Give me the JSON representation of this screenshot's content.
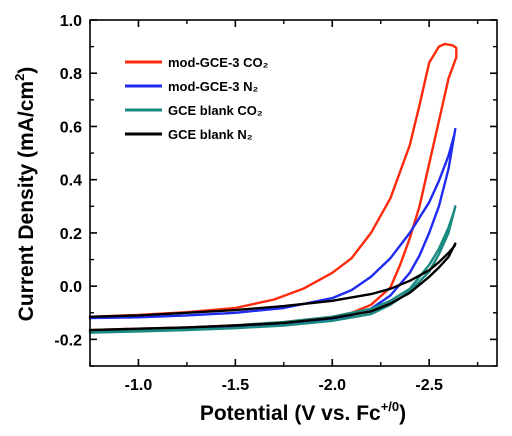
{
  "chart_data": {
    "type": "line",
    "xlabel": "Potential (V vs. Fc",
    "xlabel_sup": "+/0",
    "xlabel_end": ")",
    "ylabel": "Current Density (mA/cm",
    "ylabel_sup": "2",
    "ylabel_end": ")",
    "xlim": [
      -0.75,
      -2.85
    ],
    "ylim": [
      -0.3,
      1.0
    ],
    "x_ticks": [
      -1.0,
      -1.5,
      -2.0,
      -2.5
    ],
    "x_tick_labels": [
      "-1.0",
      "-1.5",
      "-2.0",
      "-2.5"
    ],
    "y_ticks": [
      -0.2,
      0.0,
      0.2,
      0.4,
      0.6,
      0.8,
      1.0
    ],
    "y_tick_labels": [
      "-0.2",
      "0.0",
      "0.2",
      "0.4",
      "0.6",
      "0.8",
      "1.0"
    ],
    "legend_position": "top-left",
    "series": [
      {
        "name": "mod-GCE-3 CO₂",
        "color": "#ff2a0c",
        "points": [
          [
            -0.75,
            -0.115
          ],
          [
            -1.0,
            -0.108
          ],
          [
            -1.25,
            -0.098
          ],
          [
            -1.5,
            -0.082
          ],
          [
            -1.7,
            -0.05
          ],
          [
            -1.85,
            -0.01
          ],
          [
            -2.0,
            0.05
          ],
          [
            -2.1,
            0.105
          ],
          [
            -2.2,
            0.2
          ],
          [
            -2.3,
            0.33
          ],
          [
            -2.4,
            0.53
          ],
          [
            -2.45,
            0.68
          ],
          [
            -2.5,
            0.84
          ],
          [
            -2.55,
            0.9
          ],
          [
            -2.58,
            0.91
          ],
          [
            -2.62,
            0.905
          ],
          [
            -2.64,
            0.895
          ],
          [
            -2.64,
            0.86
          ],
          [
            -2.6,
            0.78
          ],
          [
            -2.55,
            0.62
          ],
          [
            -2.5,
            0.46
          ],
          [
            -2.45,
            0.3
          ],
          [
            -2.4,
            0.18
          ],
          [
            -2.35,
            0.08
          ],
          [
            -2.3,
            -0.005
          ],
          [
            -2.2,
            -0.07
          ],
          [
            -2.1,
            -0.1
          ],
          [
            -2.0,
            -0.115
          ],
          [
            -1.75,
            -0.135
          ],
          [
            -1.5,
            -0.147
          ],
          [
            -1.25,
            -0.155
          ],
          [
            -1.0,
            -0.16
          ],
          [
            -0.75,
            -0.165
          ]
        ]
      },
      {
        "name": "mod-GCE-3 N₂",
        "color": "#1f2cf0",
        "points": [
          [
            -0.75,
            -0.12
          ],
          [
            -1.0,
            -0.117
          ],
          [
            -1.25,
            -0.11
          ],
          [
            -1.5,
            -0.1
          ],
          [
            -1.75,
            -0.082
          ],
          [
            -2.0,
            -0.045
          ],
          [
            -2.1,
            -0.015
          ],
          [
            -2.2,
            0.035
          ],
          [
            -2.3,
            0.105
          ],
          [
            -2.4,
            0.2
          ],
          [
            -2.5,
            0.315
          ],
          [
            -2.55,
            0.395
          ],
          [
            -2.6,
            0.49
          ],
          [
            -2.63,
            0.57
          ],
          [
            -2.635,
            0.59
          ],
          [
            -2.6,
            0.44
          ],
          [
            -2.55,
            0.3
          ],
          [
            -2.5,
            0.2
          ],
          [
            -2.45,
            0.115
          ],
          [
            -2.4,
            0.05
          ],
          [
            -2.3,
            -0.035
          ],
          [
            -2.2,
            -0.085
          ],
          [
            -2.1,
            -0.11
          ],
          [
            -2.0,
            -0.125
          ],
          [
            -1.75,
            -0.14
          ],
          [
            -1.5,
            -0.152
          ],
          [
            -1.25,
            -0.16
          ],
          [
            -1.0,
            -0.165
          ],
          [
            -0.75,
            -0.17
          ]
        ]
      },
      {
        "name": "GCE blank CO₂",
        "color": "#1b8a80",
        "points": [
          [
            -0.75,
            -0.17
          ],
          [
            -1.0,
            -0.165
          ],
          [
            -1.25,
            -0.157
          ],
          [
            -1.5,
            -0.147
          ],
          [
            -1.75,
            -0.135
          ],
          [
            -2.0,
            -0.115
          ],
          [
            -2.2,
            -0.085
          ],
          [
            -2.3,
            -0.055
          ],
          [
            -2.4,
            -0.01
          ],
          [
            -2.5,
            0.08
          ],
          [
            -2.55,
            0.14
          ],
          [
            -2.6,
            0.22
          ],
          [
            -2.63,
            0.285
          ],
          [
            -2.635,
            0.3
          ],
          [
            -2.6,
            0.2
          ],
          [
            -2.55,
            0.12
          ],
          [
            -2.5,
            0.055
          ],
          [
            -2.4,
            -0.02
          ],
          [
            -2.3,
            -0.07
          ],
          [
            -2.2,
            -0.105
          ],
          [
            -2.0,
            -0.13
          ],
          [
            -1.75,
            -0.148
          ],
          [
            -1.5,
            -0.158
          ],
          [
            -1.25,
            -0.165
          ],
          [
            -1.0,
            -0.17
          ],
          [
            -0.75,
            -0.175
          ]
        ]
      },
      {
        "name": "GCE blank N₂",
        "color": "#000000",
        "points": [
          [
            -0.75,
            -0.115
          ],
          [
            -1.0,
            -0.11
          ],
          [
            -1.25,
            -0.1
          ],
          [
            -1.5,
            -0.09
          ],
          [
            -1.75,
            -0.075
          ],
          [
            -2.0,
            -0.055
          ],
          [
            -2.2,
            -0.03
          ],
          [
            -2.3,
            -0.01
          ],
          [
            -2.4,
            0.02
          ],
          [
            -2.5,
            0.06
          ],
          [
            -2.55,
            0.09
          ],
          [
            -2.6,
            0.125
          ],
          [
            -2.63,
            0.15
          ],
          [
            -2.635,
            0.16
          ],
          [
            -2.6,
            0.11
          ],
          [
            -2.55,
            0.07
          ],
          [
            -2.5,
            0.035
          ],
          [
            -2.4,
            -0.025
          ],
          [
            -2.3,
            -0.065
          ],
          [
            -2.2,
            -0.095
          ],
          [
            -2.0,
            -0.12
          ],
          [
            -1.75,
            -0.138
          ],
          [
            -1.5,
            -0.148
          ],
          [
            -1.25,
            -0.155
          ],
          [
            -1.0,
            -0.16
          ],
          [
            -0.75,
            -0.165
          ]
        ]
      }
    ]
  }
}
